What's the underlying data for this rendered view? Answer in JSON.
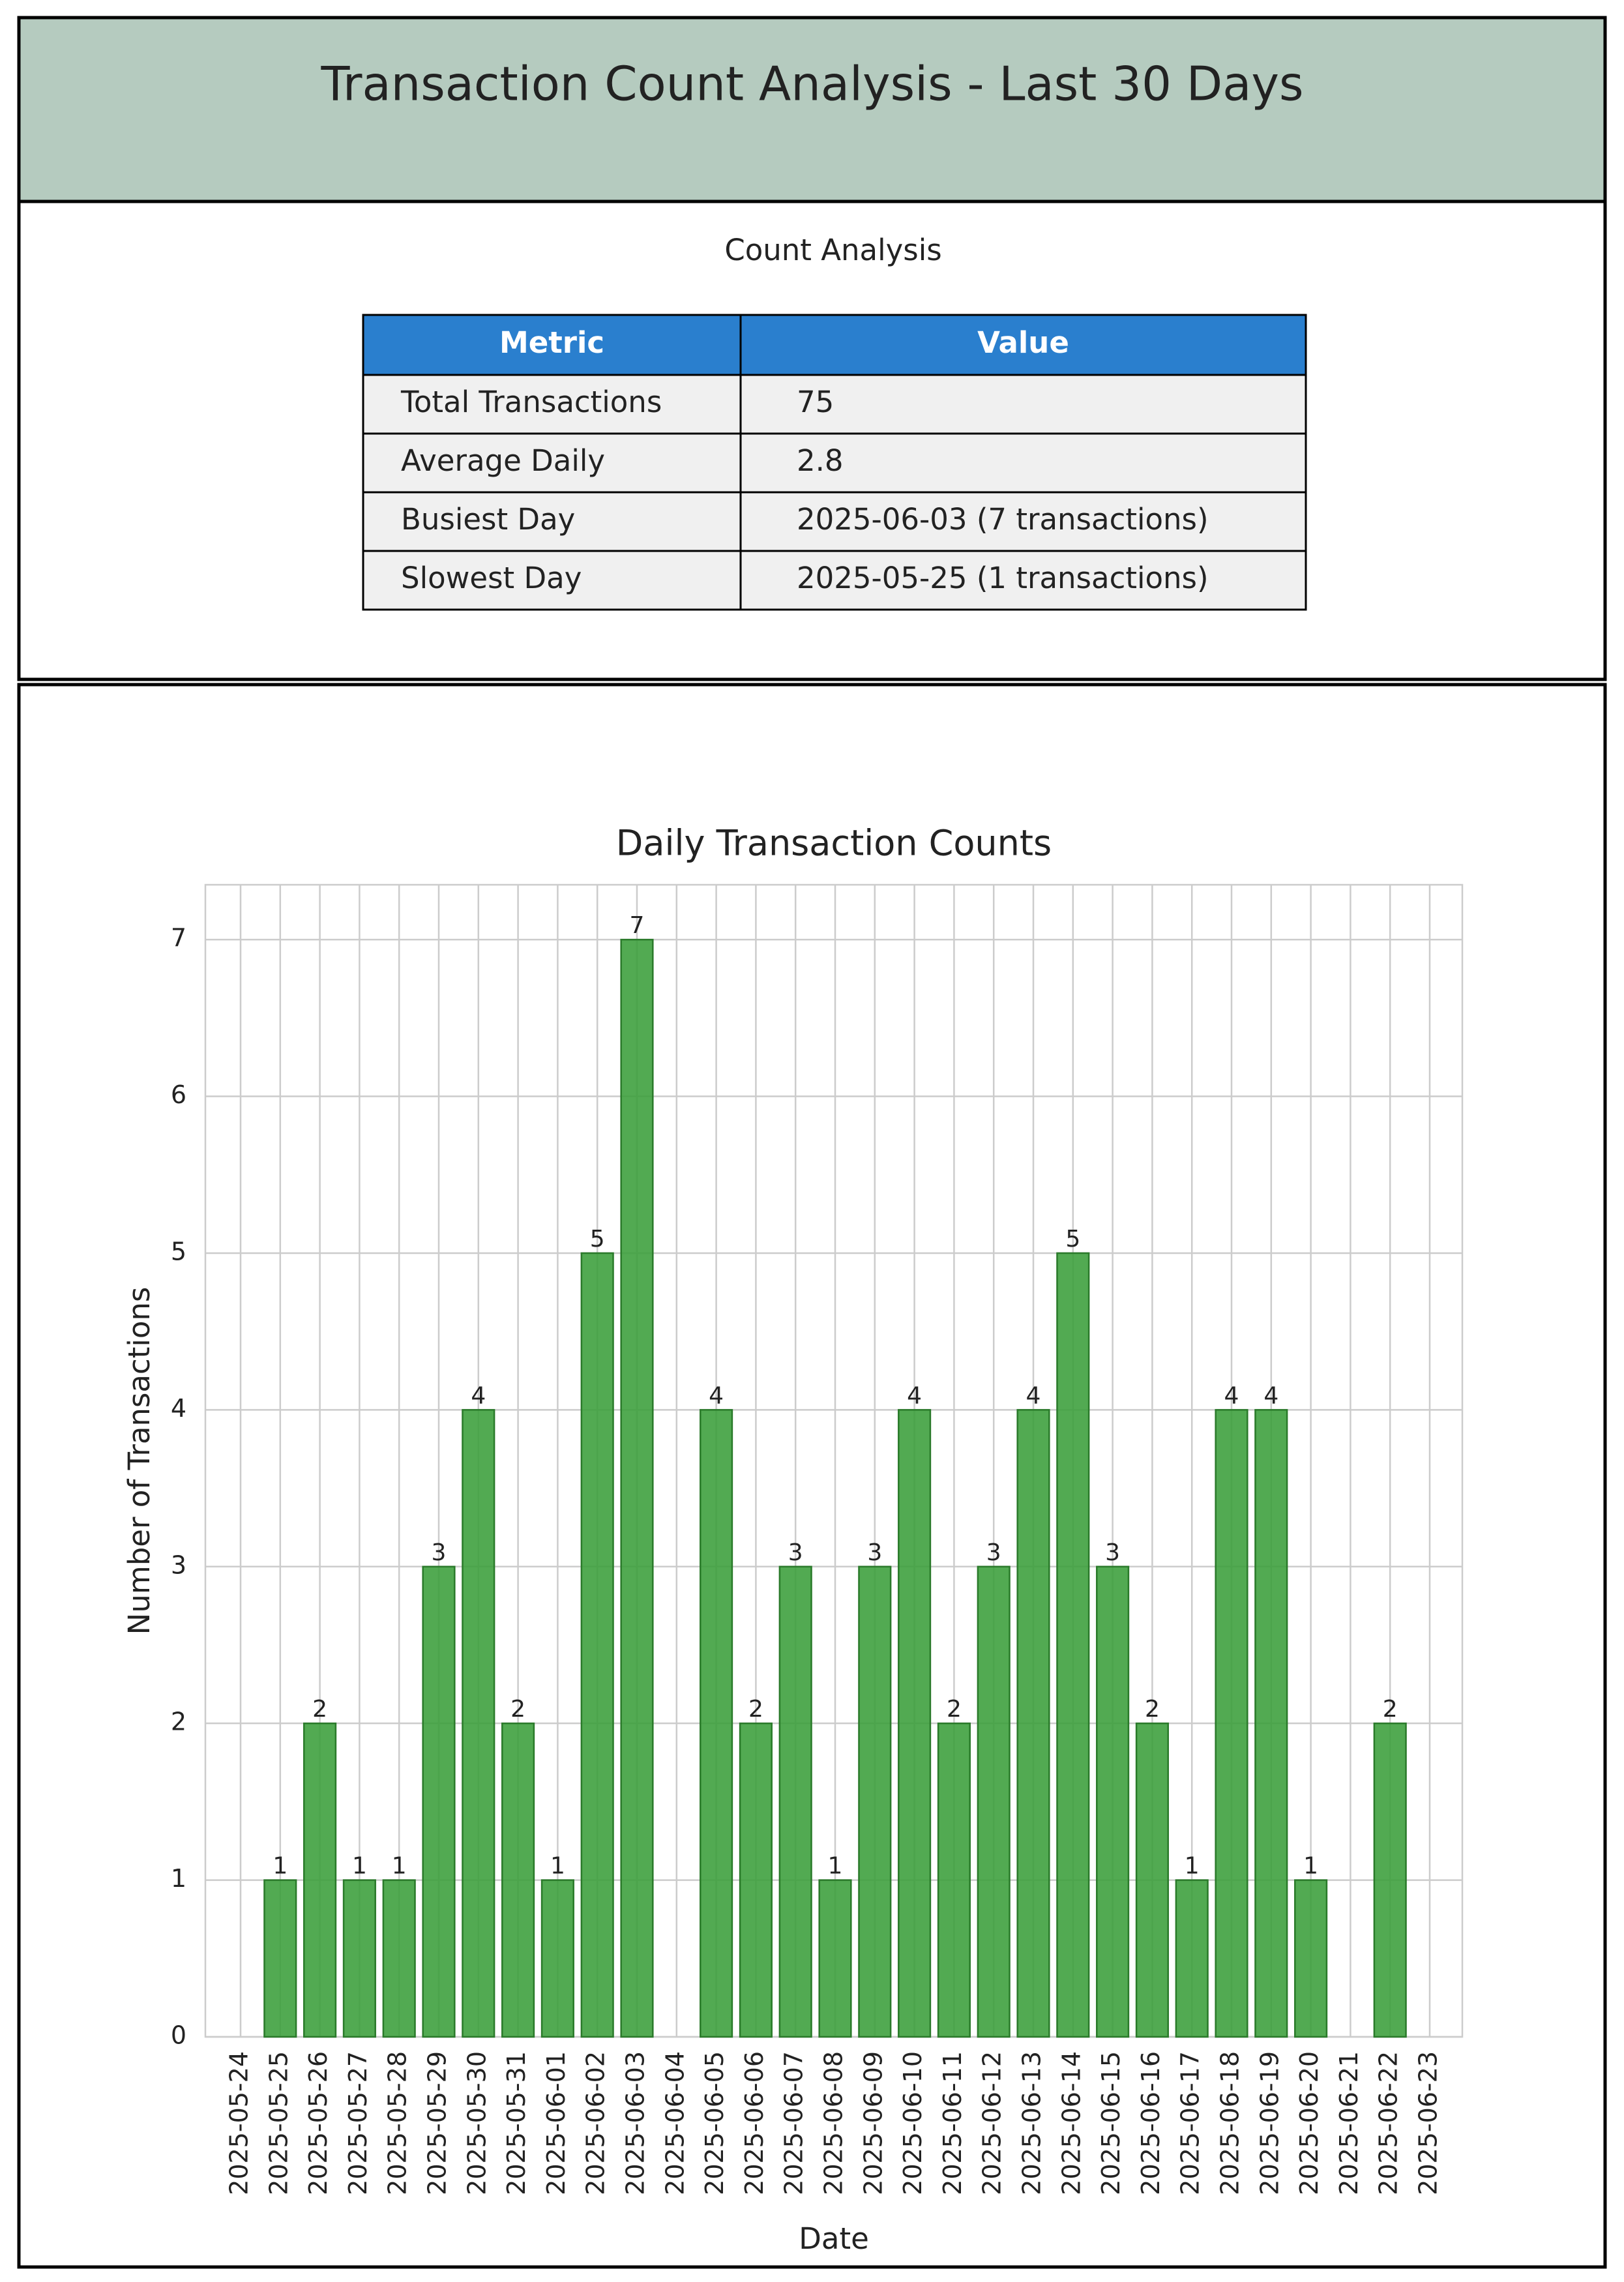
{
  "header": {
    "title": "Transaction Count Analysis - Last 30 Days"
  },
  "table": {
    "title": "Count Analysis",
    "columns": [
      "Metric",
      "Value"
    ],
    "rows": [
      [
        "Total Transactions",
        "75"
      ],
      [
        "Average Daily",
        "2.8"
      ],
      [
        "Busiest Day",
        "2025-06-03 (7 transactions)"
      ],
      [
        "Slowest Day",
        "2025-05-25 (1 transactions)"
      ]
    ]
  },
  "chart_data": {
    "type": "bar",
    "title": "Daily Transaction Counts",
    "x_label": "Date",
    "y_label": "Number of Transactions",
    "categories": [
      "2025-05-24",
      "2025-05-25",
      "2025-05-26",
      "2025-05-27",
      "2025-05-28",
      "2025-05-29",
      "2025-05-30",
      "2025-05-31",
      "2025-06-01",
      "2025-06-02",
      "2025-06-03",
      "2025-06-04",
      "2025-06-05",
      "2025-06-06",
      "2025-06-07",
      "2025-06-08",
      "2025-06-09",
      "2025-06-10",
      "2025-06-11",
      "2025-06-12",
      "2025-06-13",
      "2025-06-14",
      "2025-06-15",
      "2025-06-16",
      "2025-06-17",
      "2025-06-18",
      "2025-06-19",
      "2025-06-20",
      "2025-06-21",
      "2025-06-22",
      "2025-06-23"
    ],
    "values": [
      0,
      1,
      2,
      1,
      1,
      3,
      4,
      2,
      1,
      5,
      7,
      0,
      4,
      2,
      3,
      1,
      3,
      4,
      2,
      3,
      4,
      5,
      3,
      2,
      1,
      4,
      4,
      1,
      0,
      2,
      0
    ],
    "color": "#3a9e3a",
    "ylim": [
      0,
      7.35
    ],
    "yticks": [
      0,
      1,
      2,
      3,
      4,
      5,
      6,
      7
    ],
    "grid": true
  }
}
